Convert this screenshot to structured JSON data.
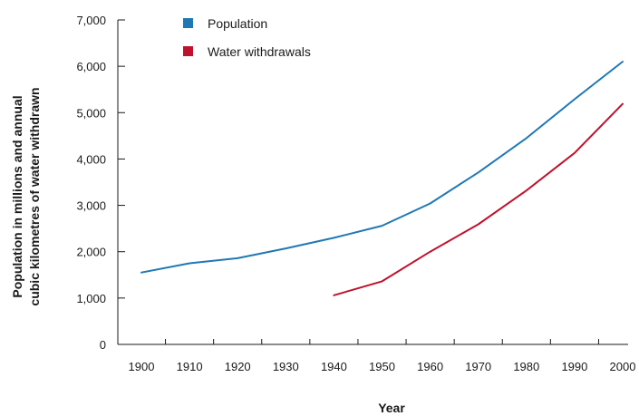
{
  "chart_data": {
    "type": "line",
    "x": [
      1900,
      1910,
      1920,
      1930,
      1940,
      1950,
      1960,
      1970,
      1980,
      1990,
      2000
    ],
    "x_tick_labels": [
      "1900",
      "1910",
      "1920",
      "1930",
      "1940",
      "1950",
      "1960",
      "1970",
      "1980",
      "1990",
      "2000"
    ],
    "y_tick_values": [
      0,
      1000,
      2000,
      3000,
      4000,
      5000,
      6000,
      7000
    ],
    "y_tick_labels": [
      "0",
      "1,000",
      "2,000",
      "3,000",
      "4,000",
      "5,000",
      "6,000",
      "7,000"
    ],
    "xlim": [
      1900,
      2000
    ],
    "ylim": [
      0,
      7000
    ],
    "xlabel": "Year",
    "ylabel_lines": [
      "Population in millions and annual",
      "cubic kilometres of water withdrawn"
    ],
    "grid": false,
    "legend_position": "top-left",
    "series": [
      {
        "name": "Population",
        "color": "#1f78b4",
        "x": [
          1900,
          1910,
          1920,
          1930,
          1940,
          1950,
          1960,
          1970,
          1980,
          1990,
          2000
        ],
        "values": [
          1550,
          1750,
          1860,
          2070,
          2300,
          2560,
          3040,
          3710,
          4450,
          5290,
          6100
        ]
      },
      {
        "name": "Water withdrawals",
        "color": "#c0122c",
        "x": [
          1940,
          1950,
          1960,
          1970,
          1980,
          1990,
          2000
        ],
        "values": [
          1060,
          1360,
          2000,
          2590,
          3320,
          4130,
          5190
        ]
      }
    ]
  }
}
